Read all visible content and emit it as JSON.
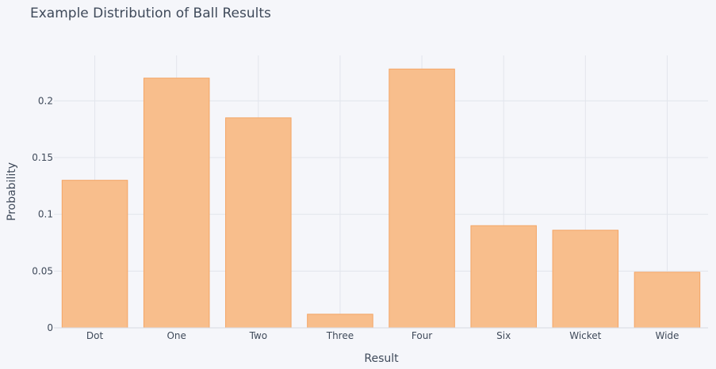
{
  "chart_data": {
    "type": "bar",
    "title": "Example Distribution of Ball Results",
    "xlabel": "Result",
    "ylabel": "Probability",
    "categories": [
      "Dot",
      "One",
      "Two",
      "Three",
      "Four",
      "Six",
      "Wicket",
      "Wide"
    ],
    "values": [
      0.13,
      0.22,
      0.185,
      0.012,
      0.228,
      0.09,
      0.086,
      0.049
    ],
    "ylim": [
      0,
      0.24
    ],
    "y_ticks": [
      0,
      0.05,
      0.1,
      0.15,
      0.2
    ],
    "y_tick_labels": [
      "0",
      "0.05",
      "0.1",
      "0.15",
      "0.2"
    ],
    "grid": true,
    "colors": {
      "bar_fill": "#f8be8c",
      "bar_stroke": "#f4a565",
      "background": "#f5f6fa",
      "grid": "#e2e5ec",
      "text": "#3f4a5a"
    }
  }
}
